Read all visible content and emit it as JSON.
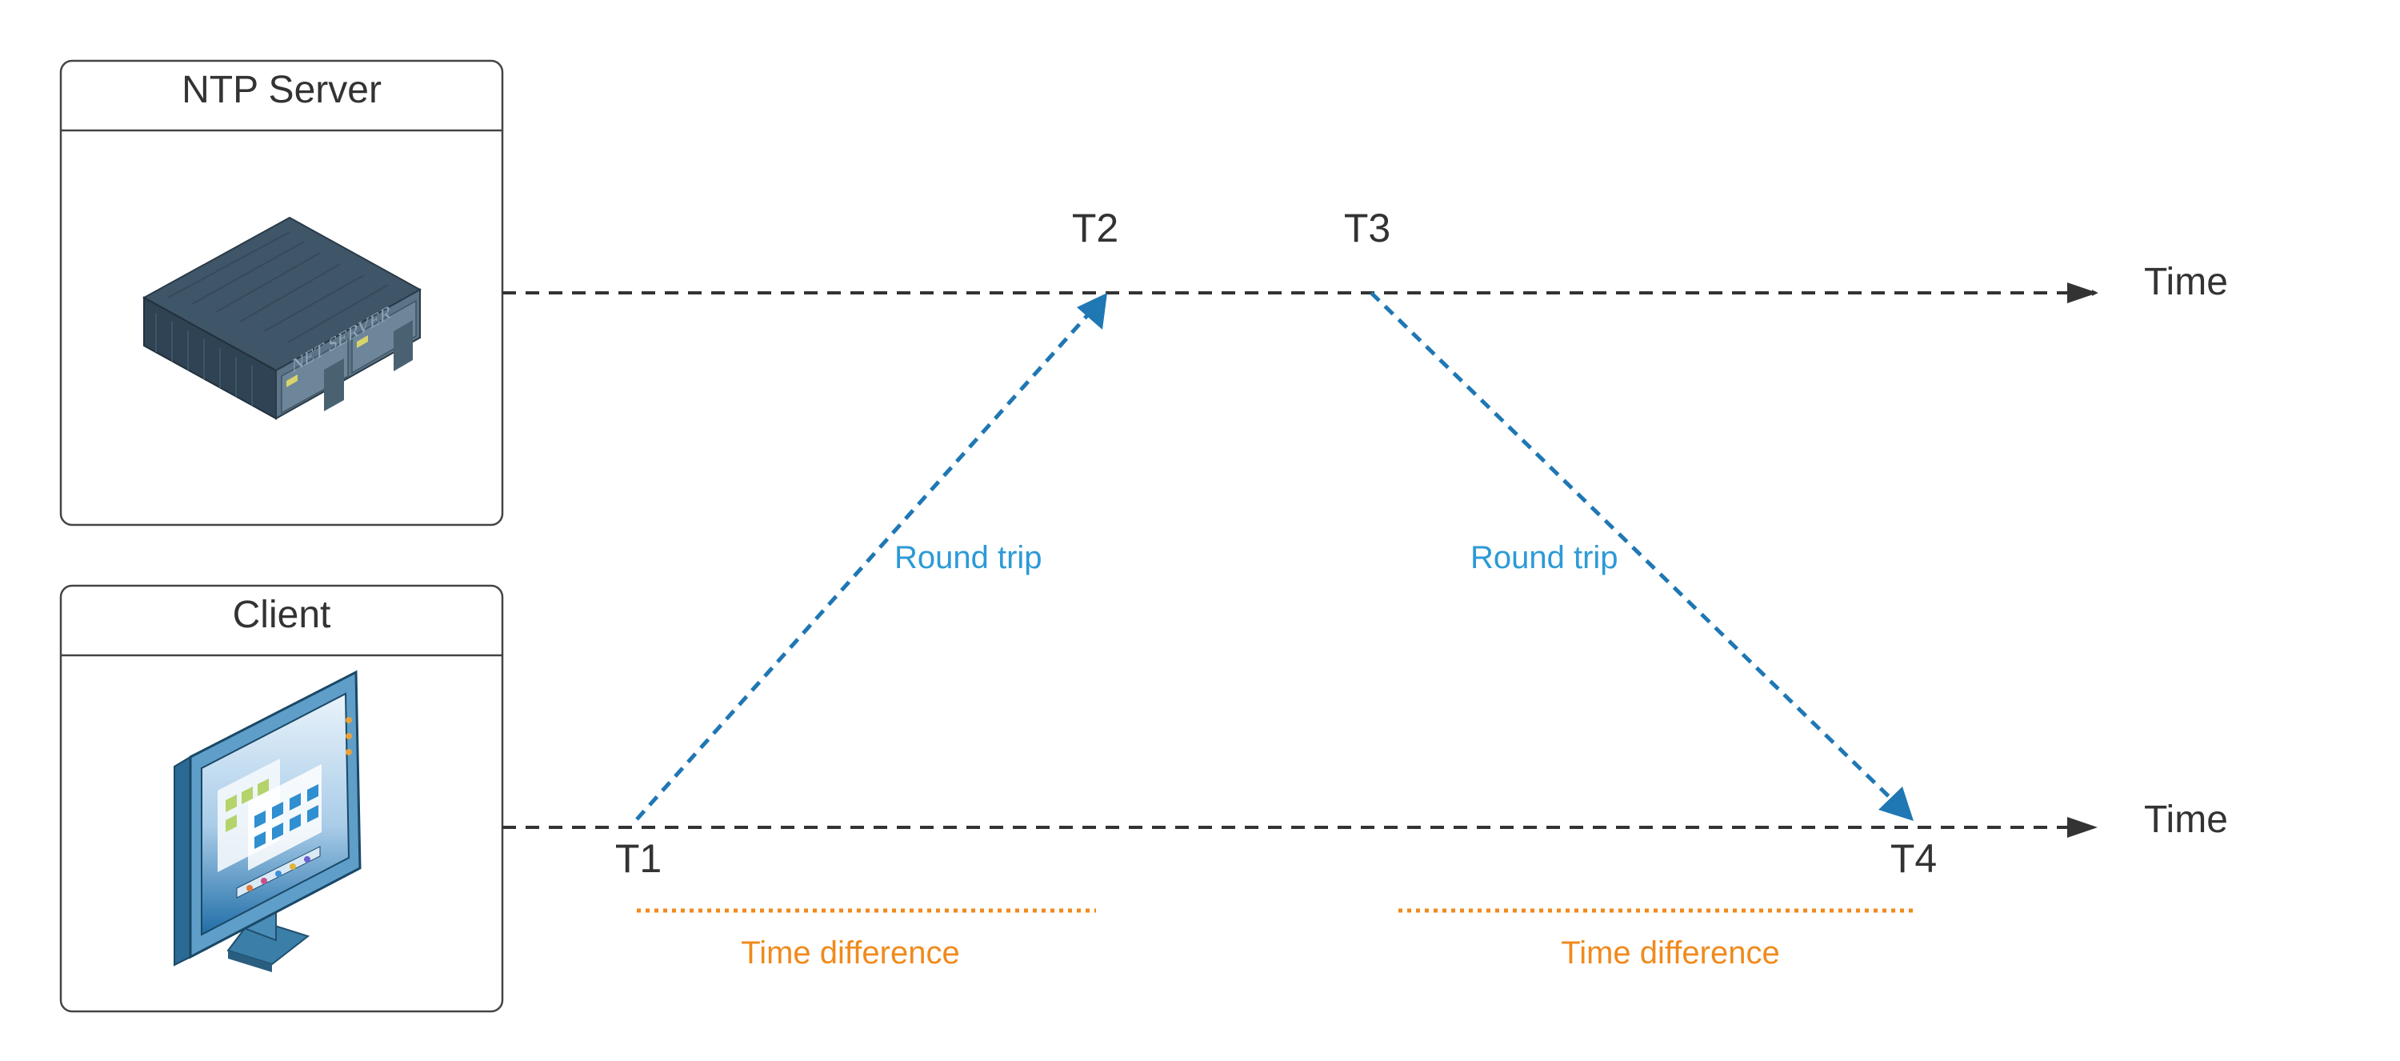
{
  "nodes": {
    "server": {
      "title": "NTP Server",
      "icon": "server-icon",
      "device_label": "NET SERVER"
    },
    "client": {
      "title": "Client",
      "icon": "monitor-icon"
    }
  },
  "timelines": {
    "server_axis_label": "Time",
    "client_axis_label": "Time"
  },
  "timestamps": {
    "t1": "T1",
    "t2": "T2",
    "t3": "T3",
    "t4": "T4"
  },
  "messages": {
    "request_label": "Round trip",
    "response_label": "Round trip"
  },
  "differences": {
    "left_label": "Time difference",
    "right_label": "Time difference"
  },
  "colors": {
    "timeline": "#333333",
    "message": "#1f77b4",
    "message_label": "#2c9ad6",
    "difference": "#f08a1c",
    "box_border": "#444444"
  }
}
